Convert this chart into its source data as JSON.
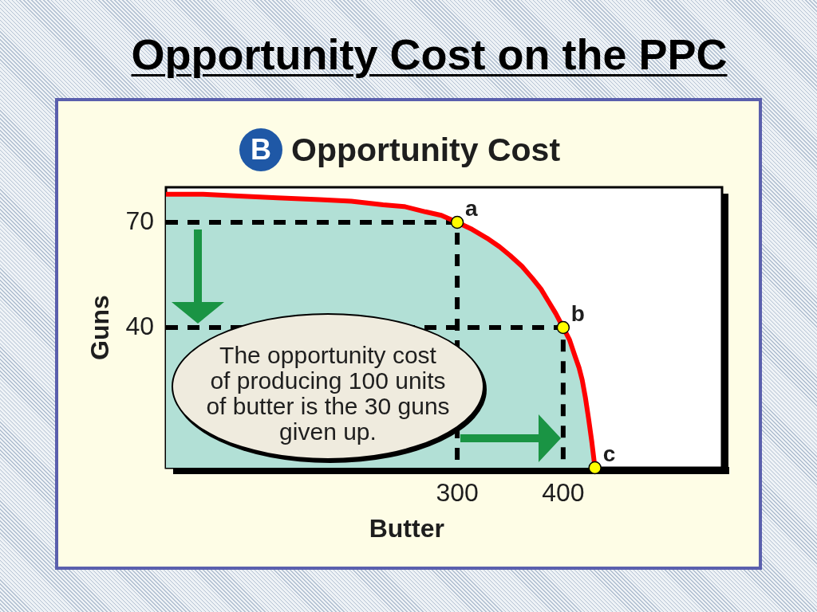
{
  "chart_data": {
    "type": "line",
    "title": "Opportunity Cost on the PPC",
    "subtitle": "Opportunity Cost",
    "xlabel": "Butter",
    "ylabel": "Guns",
    "color": "#ff0000",
    "xlim": [
      25,
      550
    ],
    "xticks": [
      300,
      400
    ],
    "ylim": [
      0,
      80
    ],
    "yticks": [
      40,
      70
    ],
    "series": [
      {
        "color": "#000000",
        "line_style": "dashed",
        "x": [
          25,
          300,
          300
        ],
        "values": [
          70,
          70,
          0
        ]
      },
      {
        "color": "#000000",
        "line_style": "dashed",
        "x": [
          25,
          400,
          400
        ],
        "values": [
          40,
          40,
          0
        ]
      },
      {
        "type": "area",
        "color": "#b2e0d6",
        "x": [
          25,
          60,
          94,
          130,
          170,
          200,
          230,
          250,
          270,
          285,
          300,
          314,
          328,
          340,
          350,
          361,
          371,
          379,
          386,
          393,
          400,
          406,
          411,
          415,
          418,
          421,
          424,
          427,
          430
        ],
        "values": [
          78,
          78,
          77.5,
          77,
          76.5,
          76,
          75,
          74.5,
          73,
          72,
          70,
          68,
          65.5,
          63,
          60.5,
          57.5,
          54,
          51,
          47.5,
          44,
          40,
          36.5,
          32,
          28.5,
          25,
          20,
          14,
          7.5,
          0
        ]
      },
      {
        "type": "scatter",
        "color": "#ffff00",
        "marker": "circle",
        "x": [
          300,
          400,
          430
        ],
        "values": [
          70,
          40,
          0
        ]
      }
    ],
    "annotations": [
      "B",
      {
        "text": "a",
        "x": 300,
        "y": 70
      },
      {
        "text": "b",
        "x": 400,
        "y": 40
      },
      {
        "text": "c",
        "x": 430,
        "y": 0
      },
      "The opportunity cost\nof producing 100 units\nof butter is the 30 guns\ngiven up."
    ]
  }
}
